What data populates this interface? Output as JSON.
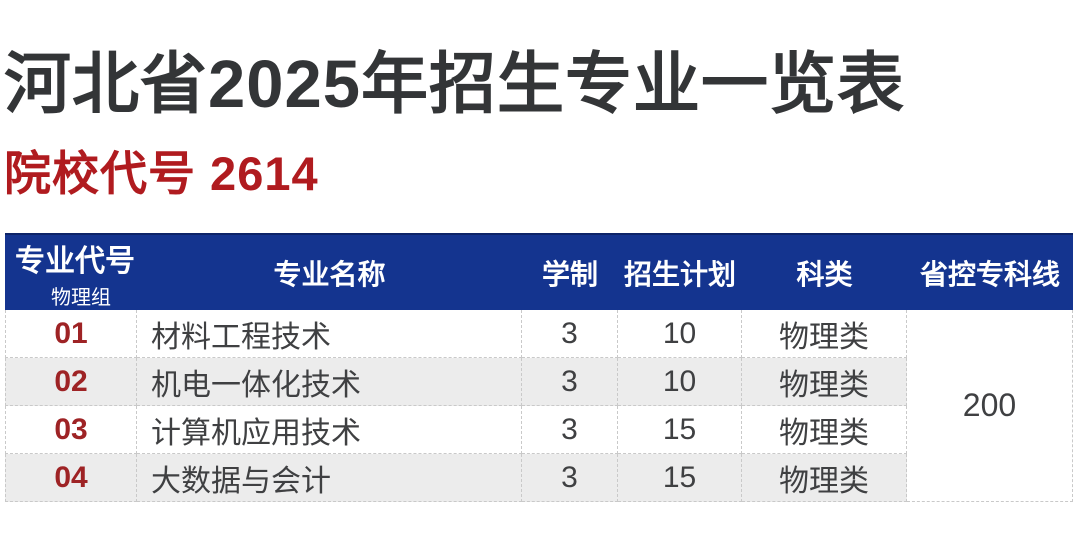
{
  "page": {
    "background_color": "#ffffff"
  },
  "header": {
    "title": "河北省2025年招生专业一览表",
    "subtitle": "院校代号 2614",
    "title_color": "#333537",
    "subtitle_color": "#b01b1f"
  },
  "table": {
    "header_bg_color": "#14348f",
    "header_text_color": "#ffffff",
    "code_text_color": "#9e2325",
    "zebra_row_color": "#ececec",
    "border_color": "#c9c9c9",
    "columns": [
      "专业代号",
      "专业名称",
      "学制",
      "招生计划",
      "科类",
      "省控专科线"
    ],
    "group_label": "物理组",
    "rows": [
      {
        "code": "01",
        "name": "材料工程技术",
        "years": "3",
        "plan": "10",
        "category": "物理类"
      },
      {
        "code": "02",
        "name": "机电一体化技术",
        "years": "3",
        "plan": "10",
        "category": "物理类"
      },
      {
        "code": "03",
        "name": "计算机应用技术",
        "years": "3",
        "plan": "15",
        "category": "物理类"
      },
      {
        "code": "04",
        "name": "大数据与会计",
        "years": "3",
        "plan": "15",
        "category": "物理类"
      }
    ],
    "province_line": "200"
  }
}
